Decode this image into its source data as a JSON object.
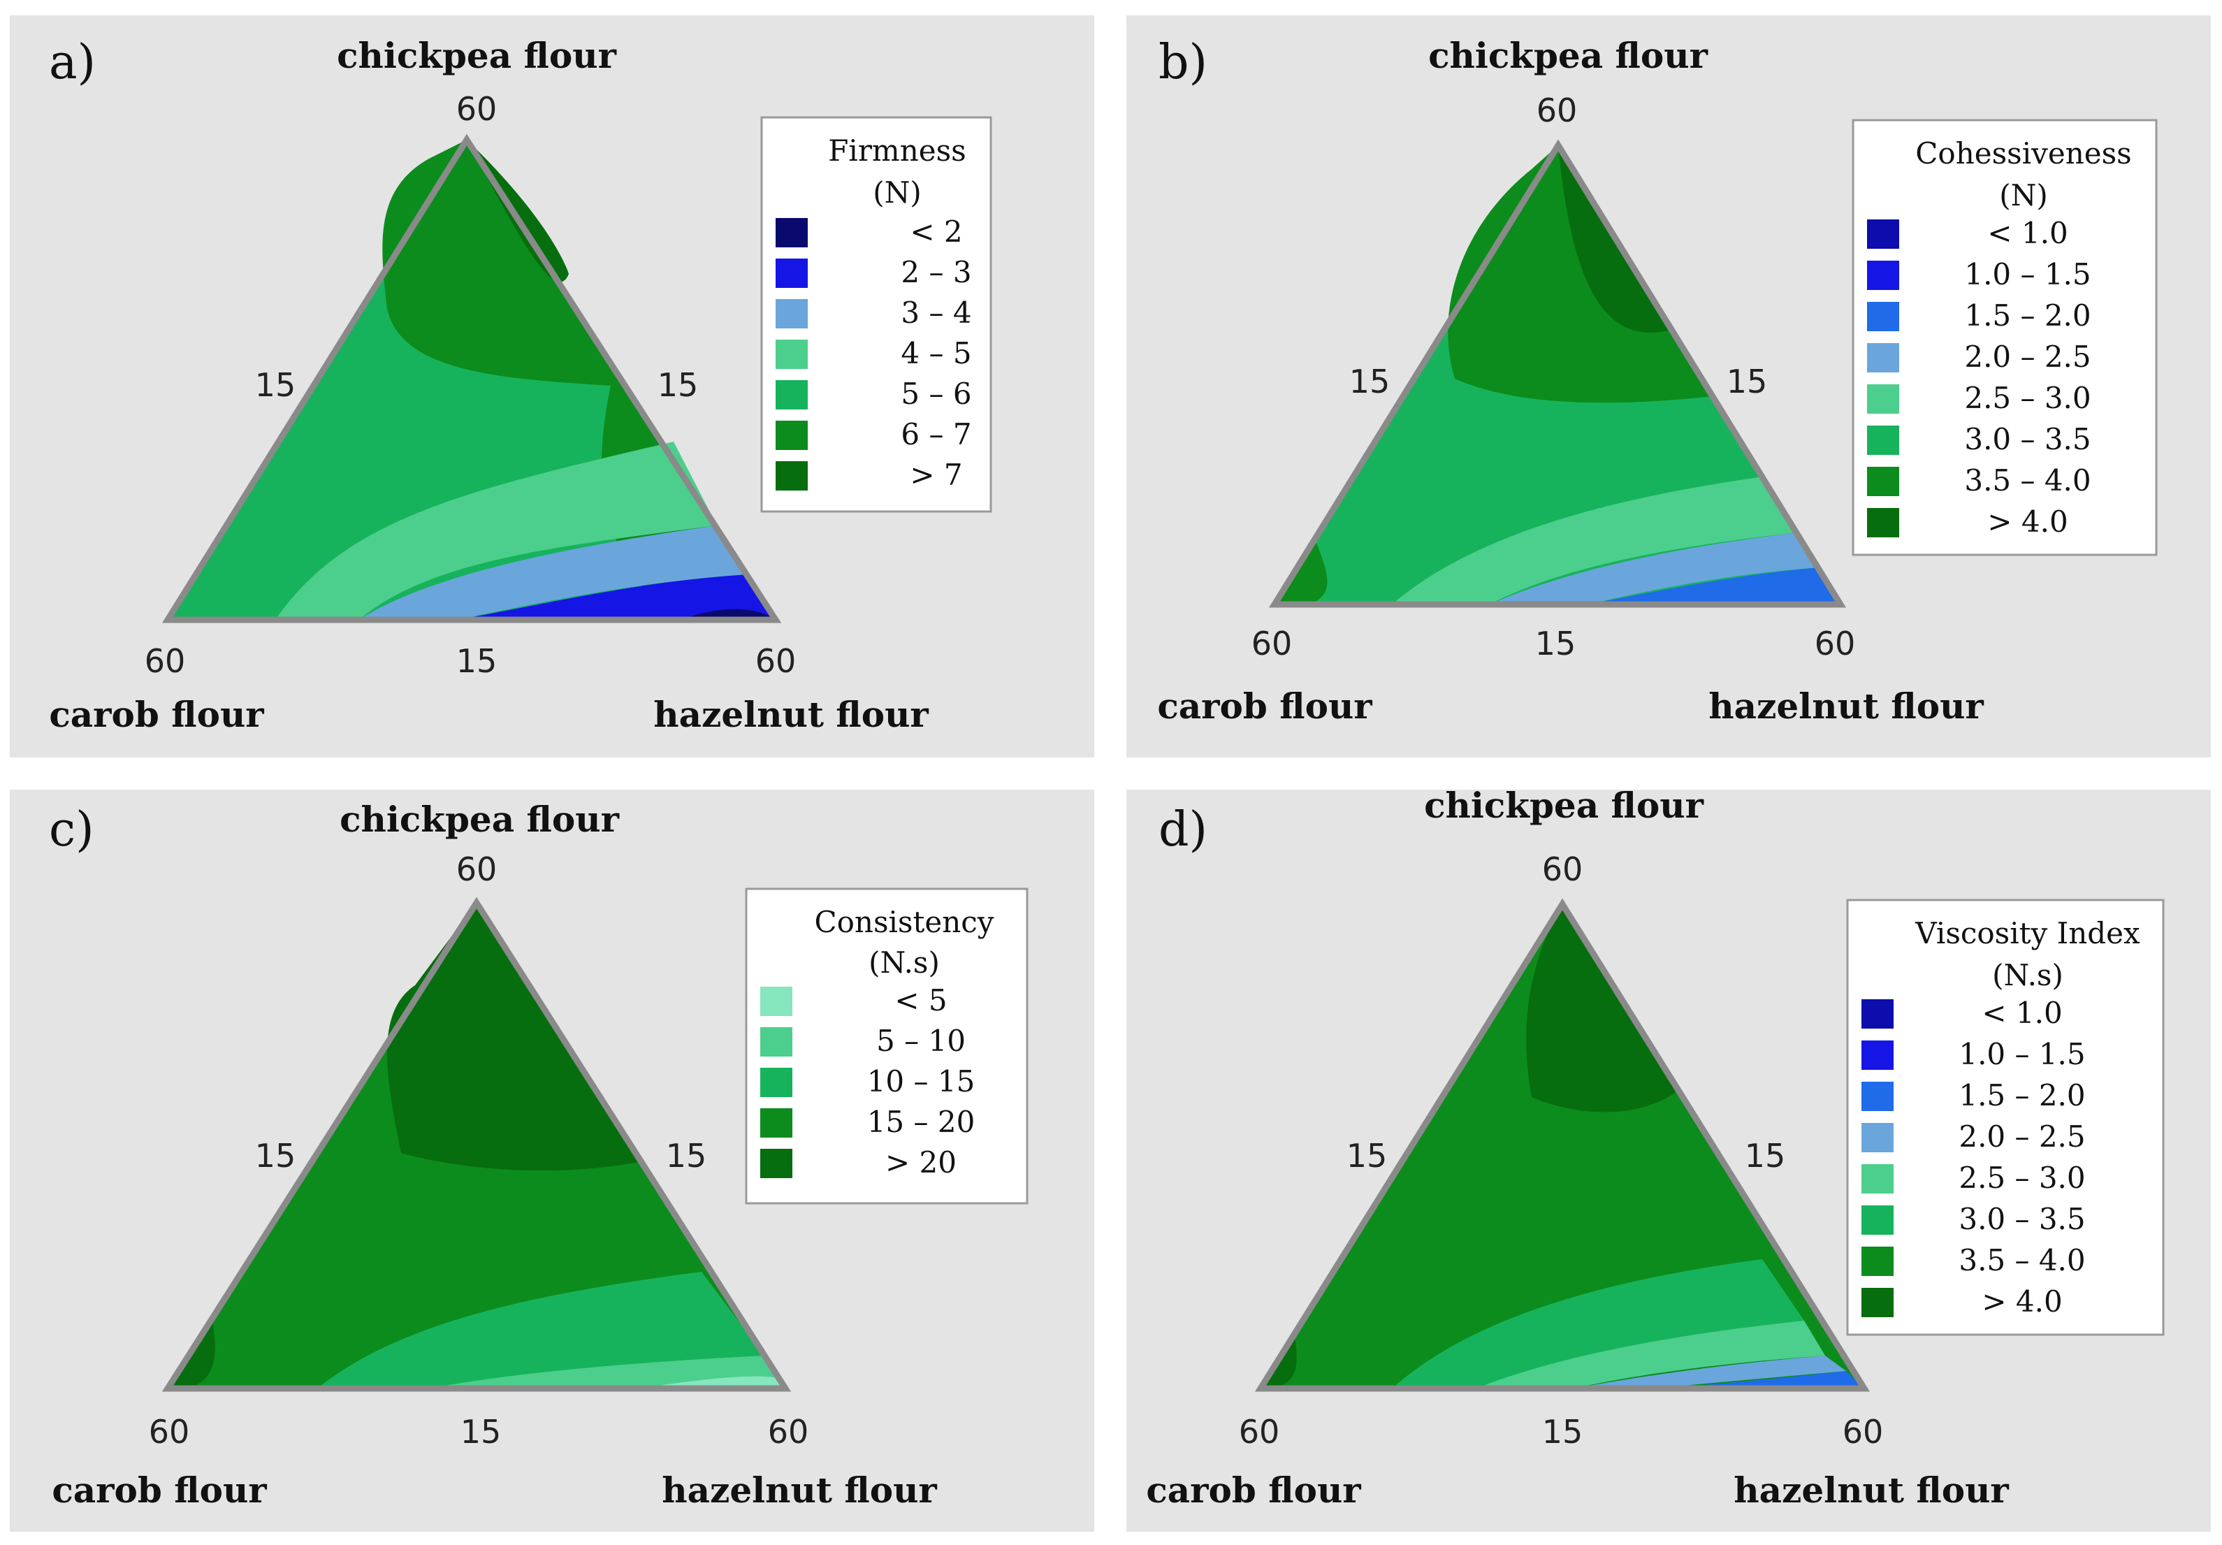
{
  "chart_data": [
    {
      "type": "ternary-contour",
      "panel_label": "a)",
      "vertex_titles": {
        "top": "chickpea flour",
        "left": "carob flour",
        "right": "hazelnut flour"
      },
      "tick_labels": {
        "top": "60",
        "left": "60",
        "right": "60",
        "left_side": "15",
        "right_side": "15",
        "bottom_side": "15"
      },
      "legend": {
        "title_line1": "Firmness",
        "title_line2": "(N)",
        "items": [
          {
            "label": "<  2",
            "color": "#0a0a6e"
          },
          {
            "label": "2  –  3",
            "color": "#1515e6"
          },
          {
            "label": "3  –  4",
            "color": "#6aa6dc"
          },
          {
            "label": "4  –  5",
            "color": "#4ccf8c"
          },
          {
            "label": "5  –  6",
            "color": "#17b35c"
          },
          {
            "label": "6  –  7",
            "color": "#0c8c1c"
          },
          {
            "label": ">  7",
            "color": "#066e0e"
          }
        ]
      },
      "regions": [
        "#066e0e",
        "#0c8c1c",
        "#17b35c",
        "#4ccf8c",
        "#6aa6dc",
        "#1515e6",
        "#0a0a6e"
      ]
    },
    {
      "type": "ternary-contour",
      "panel_label": "b)",
      "vertex_titles": {
        "top": "chickpea flour",
        "left": "carob flour",
        "right": "hazelnut flour"
      },
      "tick_labels": {
        "top": "60",
        "left": "60",
        "right": "60",
        "left_side": "15",
        "right_side": "15",
        "bottom_side": "15"
      },
      "legend": {
        "title_line1": "Cohessiveness",
        "title_line2": "(N)",
        "items": [
          {
            "label": "<  1.0",
            "color": "#0d0dae"
          },
          {
            "label": "1.0  –  1.5",
            "color": "#1515e6"
          },
          {
            "label": "1.5  –  2.0",
            "color": "#1f6be8"
          },
          {
            "label": "2.0  –  2.5",
            "color": "#6aa6dc"
          },
          {
            "label": "2.5  –  3.0",
            "color": "#4ccf8c"
          },
          {
            "label": "3.0  –  3.5",
            "color": "#17b35c"
          },
          {
            "label": "3.5  –  4.0",
            "color": "#0c8c1c"
          },
          {
            "label": ">  4.0",
            "color": "#066e0e"
          }
        ]
      },
      "regions": [
        "#066e0e",
        "#0c8c1c",
        "#17b35c",
        "#4ccf8c",
        "#6aa6dc",
        "#1f6be8",
        "#1515e6"
      ]
    },
    {
      "type": "ternary-contour",
      "panel_label": "c)",
      "vertex_titles": {
        "top": "chickpea flour",
        "left": "carob flour",
        "right": "hazelnut flour"
      },
      "tick_labels": {
        "top": "60",
        "left": "60",
        "right": "60",
        "left_side": "15",
        "right_side": "15",
        "bottom_side": "15"
      },
      "legend": {
        "title_line1": "Consistency",
        "title_line2": "(N.s)",
        "items": [
          {
            "label": "<  5",
            "color": "#86e6be"
          },
          {
            "label": "5  –  10",
            "color": "#4ccf8c"
          },
          {
            "label": "10  –  15",
            "color": "#17b35c"
          },
          {
            "label": "15  –  20",
            "color": "#0c8c1c"
          },
          {
            "label": ">  20",
            "color": "#066e0e"
          }
        ]
      },
      "regions": [
        "#066e0e",
        "#0c8c1c",
        "#17b35c",
        "#4ccf8c",
        "#86e6be"
      ]
    },
    {
      "type": "ternary-contour",
      "panel_label": "d)",
      "vertex_titles": {
        "top": "chickpea flour",
        "left": "carob flour",
        "right": "hazelnut flour"
      },
      "tick_labels": {
        "top": "60",
        "left": "60",
        "right": "60",
        "left_side": "15",
        "right_side": "15",
        "bottom_side": "15"
      },
      "legend": {
        "title_line1": "Viscosity Index",
        "title_line2": "(N.s)",
        "items": [
          {
            "label": "<  1.0",
            "color": "#0d0dae"
          },
          {
            "label": "1.0  –  1.5",
            "color": "#1515e6"
          },
          {
            "label": "1.5  –  2.0",
            "color": "#1f6be8"
          },
          {
            "label": "2.0  –  2.5",
            "color": "#6aa6dc"
          },
          {
            "label": "2.5  –  3.0",
            "color": "#4ccf8c"
          },
          {
            "label": "3.0  –  3.5",
            "color": "#17b35c"
          },
          {
            "label": "3.5  –  4.0",
            "color": "#0c8c1c"
          },
          {
            "label": ">  4.0",
            "color": "#066e0e"
          }
        ]
      },
      "regions": [
        "#066e0e",
        "#0c8c1c",
        "#17b35c",
        "#4ccf8c",
        "#6aa6dc",
        "#1f6be8",
        "#1515e6"
      ]
    }
  ]
}
